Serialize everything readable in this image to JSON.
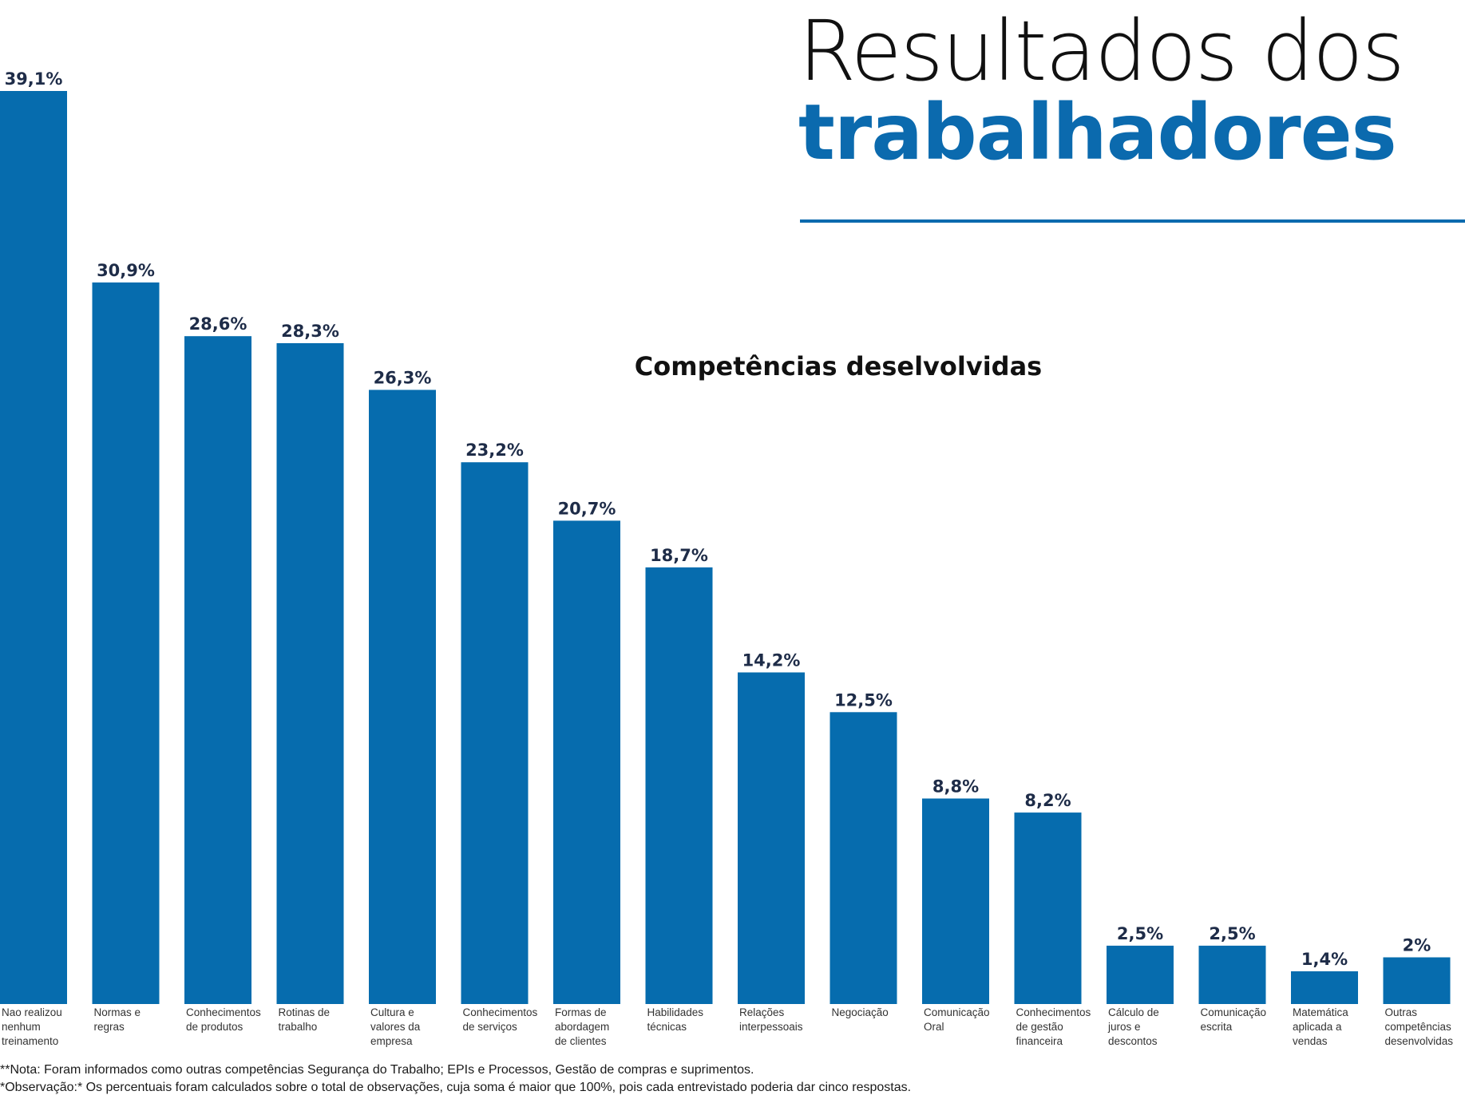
{
  "header": {
    "title_line1": "Resultados dos",
    "title_line2": "trabalhadores"
  },
  "colors": {
    "bar": "#066cae",
    "title_accent": "#0b6aae",
    "value_label": "#1e2c48"
  },
  "chart_data": {
    "type": "bar",
    "title": "Competências deselvolvidas",
    "xlabel": "",
    "ylabel": "",
    "ylim": [
      0,
      39.1
    ],
    "grid": false,
    "categories": [
      [
        "Nao realizou",
        "nenhum",
        "treinamento"
      ],
      [
        "Normas e",
        "regras"
      ],
      [
        "Conhecimentos",
        "de produtos"
      ],
      [
        "Rotinas de",
        "trabalho"
      ],
      [
        "Cultura e",
        "valores da",
        "empresa"
      ],
      [
        "Conhecimentos",
        "de serviços"
      ],
      [
        "Formas de",
        "abordagem",
        "de clientes"
      ],
      [
        "Habilidades",
        "técnicas"
      ],
      [
        "Relações",
        "interpessoais"
      ],
      [
        "Negociação"
      ],
      [
        "Comunicação",
        "Oral"
      ],
      [
        "Conhecimentos",
        "de gestão",
        "financeira"
      ],
      [
        "Cálculo de",
        "juros e",
        "descontos"
      ],
      [
        "Comunicação",
        "escrita"
      ],
      [
        "Matemática",
        "aplicada a",
        "vendas"
      ],
      [
        "Outras",
        "competências",
        "desenvolvidas"
      ]
    ],
    "values": [
      39.1,
      30.9,
      28.6,
      28.3,
      26.3,
      23.2,
      20.7,
      18.7,
      14.2,
      12.5,
      8.8,
      8.2,
      2.5,
      2.5,
      1.4,
      2
    ],
    "value_labels": [
      "39,1%",
      "30,9%",
      "28,6%",
      "28,3%",
      "26,3%",
      "23,2%",
      "20,7%",
      "18,7%",
      "14,2%",
      "12,5%",
      "8,8%",
      "8,2%",
      "2,5%",
      "2,5%",
      "1,4%",
      "2%"
    ]
  },
  "footnotes": {
    "nota": "**Nota: Foram informados como outras competências Segurança do Trabalho; EPIs e Processos, Gestão de compras e suprimentos.",
    "observacao": "*Observação:* Os percentuais foram calculados sobre o total de observações, cuja soma é maior que 100%, pois cada entrevistado poderia dar cinco respostas."
  }
}
